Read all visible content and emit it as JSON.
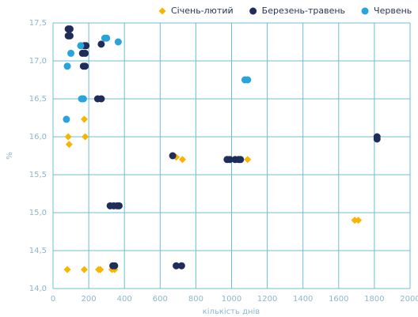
{
  "chart_data": {
    "type": "scatter",
    "xlabel": "кількість днів",
    "ylabel": "%",
    "xlim": [
      0,
      2000
    ],
    "xticks": [
      0,
      200,
      400,
      600,
      800,
      1000,
      1200,
      1400,
      1600,
      1800,
      2000
    ],
    "ylim": [
      14.0,
      17.5
    ],
    "yticks": [
      {
        "value": 14.0,
        "label": "14,0"
      },
      {
        "value": 14.5,
        "label": "14,5"
      },
      {
        "value": 15.0,
        "label": "15,0"
      },
      {
        "value": 15.5,
        "label": "15,5"
      },
      {
        "value": 16.0,
        "label": "16,0"
      },
      {
        "value": 16.5,
        "label": "16,5"
      },
      {
        "value": 17.0,
        "label": "17,0"
      },
      {
        "value": 17.5,
        "label": "17,5"
      }
    ],
    "grid": true,
    "legend": "top-right",
    "series": [
      {
        "name": "Січень-лютий",
        "color": "#f7b500",
        "marker": "diamond",
        "x": [
          80,
          175,
          255,
          265,
          330,
          345,
          90,
          85,
          180,
          175,
          690,
          725,
          1090,
          1690,
          1710
        ],
        "values": [
          14.25,
          14.25,
          14.25,
          14.25,
          14.25,
          14.25,
          15.9,
          16.0,
          16.0,
          16.23,
          15.73,
          15.7,
          15.7,
          14.9,
          14.9
        ]
      },
      {
        "name": "Березень-травень",
        "color": "#1f2d5a",
        "marker": "circle",
        "x": [
          85,
          95,
          85,
          95,
          175,
          185,
          165,
          180,
          180,
          170,
          270,
          250,
          270,
          670,
          975,
          990,
          1020,
          1040,
          1050,
          320,
          340,
          360,
          370,
          335,
          345,
          690,
          720,
          1815,
          1815
        ],
        "values": [
          17.42,
          17.42,
          17.33,
          17.33,
          17.2,
          17.2,
          17.1,
          17.1,
          16.93,
          16.93,
          17.22,
          16.5,
          16.5,
          15.75,
          15.7,
          15.7,
          15.7,
          15.7,
          15.7,
          15.09,
          15.09,
          15.09,
          15.09,
          14.3,
          14.3,
          14.3,
          14.3,
          16.0,
          15.97
        ]
      },
      {
        "name": "Червень",
        "color": "#29a3dc",
        "marker": "circle",
        "x": [
          290,
          300,
          365,
          155,
          100,
          80,
          170,
          160,
          1075,
          1090,
          75
        ],
        "values": [
          17.3,
          17.3,
          17.25,
          17.2,
          17.1,
          16.93,
          16.5,
          16.5,
          16.75,
          16.75,
          16.23
        ]
      }
    ]
  }
}
